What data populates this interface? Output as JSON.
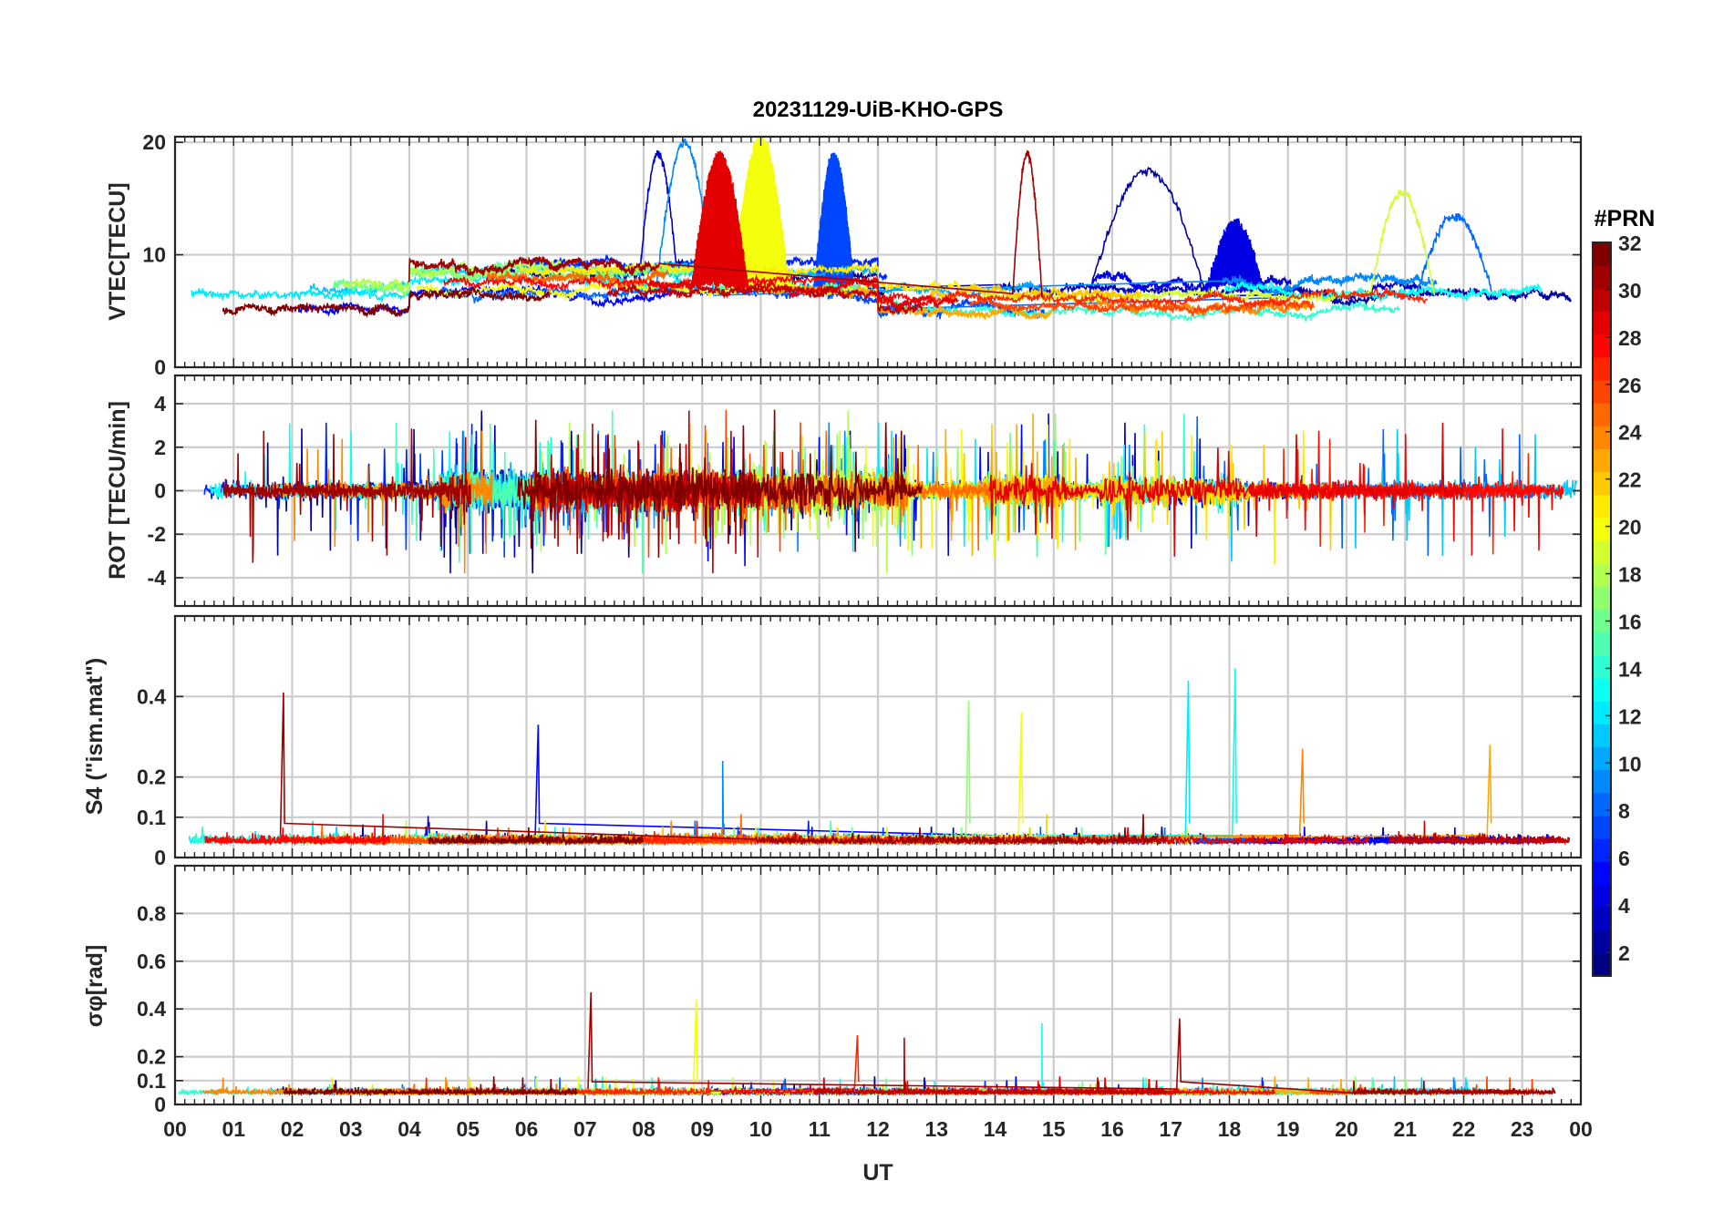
{
  "chart_data": {
    "type": "line",
    "title": "20231129-UiB-KHO-GPS",
    "xlabel": "UT",
    "x_ticks": [
      "00",
      "01",
      "02",
      "03",
      "04",
      "05",
      "06",
      "07",
      "08",
      "09",
      "10",
      "11",
      "12",
      "13",
      "14",
      "15",
      "16",
      "17",
      "18",
      "19",
      "20",
      "21",
      "22",
      "23",
      "00"
    ],
    "x_range_hours": [
      0,
      24
    ],
    "colorbar": {
      "title": "#PRN",
      "range": [
        1,
        32
      ],
      "ticks": [
        "2",
        "4",
        "6",
        "8",
        "10",
        "12",
        "14",
        "16",
        "18",
        "20",
        "22",
        "24",
        "26",
        "28",
        "30",
        "32"
      ],
      "colormap": "jet"
    },
    "panels": [
      {
        "id": "vtec",
        "ylabel": "VTEC[TECU]",
        "ylim": [
          0,
          20.5
        ],
        "yticks": [
          0,
          10,
          20
        ],
        "ytick_labels": [
          "0",
          "10",
          "20"
        ],
        "baseline": 6.5,
        "noise": 0.9,
        "spikiness": 0,
        "series_note": "one trace per GPS PRN 1-32",
        "events": [
          {
            "prn": 3,
            "t0": 7.9,
            "t1": 8.6,
            "peak": 19
          },
          {
            "prn": 9,
            "t0": 8.2,
            "t1": 9.2,
            "peak": 20
          },
          {
            "prn": 29,
            "t0": 8.8,
            "t1": 9.8,
            "peak": 19
          },
          {
            "prn": 20,
            "t0": 9.5,
            "t1": 10.5,
            "peak": 20.5
          },
          {
            "prn": 7,
            "t0": 10.9,
            "t1": 11.6,
            "peak": 19
          },
          {
            "prn": 31,
            "t0": 14.3,
            "t1": 14.8,
            "peak": 19
          },
          {
            "prn": 2,
            "t0": 15.6,
            "t1": 17.6,
            "peak": 17.5
          },
          {
            "prn": 4,
            "t0": 17.6,
            "t1": 18.6,
            "peak": 13
          },
          {
            "prn": 19,
            "t0": 20.4,
            "t1": 21.5,
            "peak": 15.5
          },
          {
            "prn": 8,
            "t0": 21.2,
            "t1": 22.5,
            "peak": 13.5
          }
        ]
      },
      {
        "id": "rot",
        "ylabel": "ROT [TECU/min]",
        "ylim": [
          -5.3,
          5.3
        ],
        "yticks": [
          -4,
          -2,
          0,
          2,
          4
        ],
        "ytick_labels": [
          "-4",
          "-2",
          "0",
          "2",
          "4"
        ],
        "baseline": 0,
        "noise": 0.35,
        "spikiness": 3.2,
        "active_hours": [
          [
            4.5,
            12.5,
            2.4
          ],
          [
            13.8,
            15.2,
            1.8
          ],
          [
            15.8,
            18.2,
            1.7
          ]
        ],
        "series_note": "rate of TEC, one trace per PRN"
      },
      {
        "id": "s4",
        "ylabel": "S4 (\"ism.mat\")",
        "ylim": [
          0,
          0.6
        ],
        "yticks": [
          0,
          0.1,
          0.2,
          0.4
        ],
        "ytick_labels": [
          "0",
          "0.1",
          "0.2",
          "0.4"
        ],
        "baseline": 0.035,
        "noise": 0.012,
        "spikiness": 0.03,
        "spikes": [
          {
            "prn": 31,
            "t": 1.85,
            "peak": 0.41
          },
          {
            "prn": 5,
            "t": 6.2,
            "peak": 0.33
          },
          {
            "prn": 17,
            "t": 13.55,
            "peak": 0.39
          },
          {
            "prn": 20,
            "t": 14.45,
            "peak": 0.36
          },
          {
            "prn": 12,
            "t": 17.3,
            "peak": 0.44
          },
          {
            "prn": 13,
            "t": 18.1,
            "peak": 0.47
          },
          {
            "prn": 24,
            "t": 19.25,
            "peak": 0.27
          },
          {
            "prn": 23,
            "t": 22.45,
            "peak": 0.28
          },
          {
            "prn": 9,
            "t": 9.35,
            "peak": 0.24
          }
        ]
      },
      {
        "id": "sigma_phi",
        "ylabel": "σφ[rad]",
        "ylim": [
          0,
          1.0
        ],
        "yticks": [
          0,
          0.1,
          0.2,
          0.4,
          0.6,
          0.8
        ],
        "ytick_labels": [
          "0",
          "0.1",
          "0.2",
          "0.4",
          "0.6",
          "0.8"
        ],
        "baseline": 0.045,
        "noise": 0.012,
        "spikiness": 0.03,
        "active_hours": [
          [
            4.5,
            10.5,
            0.16
          ],
          [
            16.0,
            18.3,
            0.07
          ]
        ],
        "spikes": [
          {
            "prn": 31,
            "t": 7.1,
            "peak": 0.47
          },
          {
            "prn": 20,
            "t": 8.9,
            "peak": 0.44
          },
          {
            "prn": 13,
            "t": 14.8,
            "peak": 0.34
          },
          {
            "prn": 31,
            "t": 17.15,
            "peak": 0.36
          },
          {
            "prn": 27,
            "t": 11.65,
            "peak": 0.29
          },
          {
            "prn": 30,
            "t": 12.45,
            "peak": 0.28
          }
        ]
      }
    ]
  }
}
